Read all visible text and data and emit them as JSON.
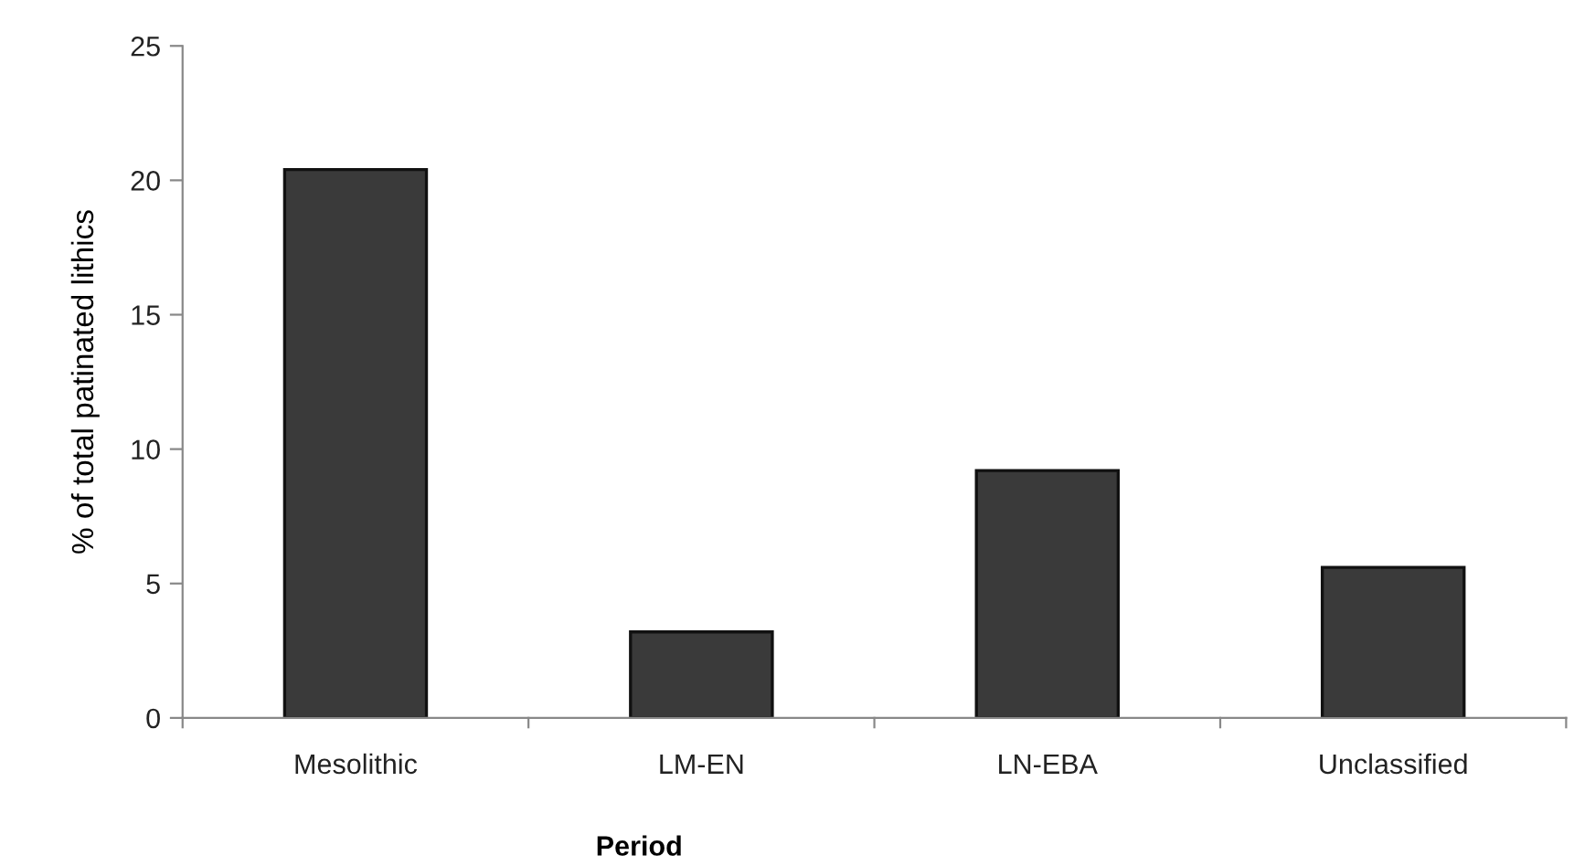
{
  "chart_data": {
    "type": "bar",
    "xlabel": "Period",
    "ylabel": "% of total patinated lithics",
    "categories": [
      "Mesolithic",
      "LM-EN",
      "LN-EBA",
      "Unclassified"
    ],
    "values": [
      20.4,
      3.2,
      9.2,
      5.6
    ],
    "color": "#3a3a3a",
    "ylim": [
      0,
      25
    ],
    "yticks": [
      0,
      5,
      10,
      15,
      20,
      25
    ],
    "grid": false,
    "legend": false
  }
}
